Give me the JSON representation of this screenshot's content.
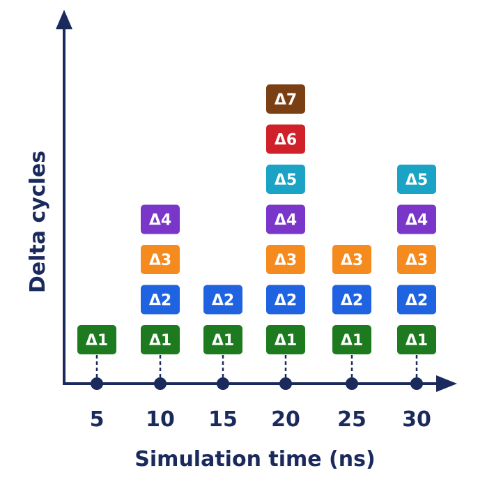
{
  "chart_data": {
    "type": "bar",
    "xlabel": "Simulation time (ns)",
    "ylabel": "Delta cycles",
    "categories": [
      "5",
      "10",
      "15",
      "20",
      "25",
      "30"
    ],
    "values": [
      1,
      4,
      2,
      7,
      3,
      5
    ],
    "delta_labels": [
      "Δ1",
      "Δ2",
      "Δ3",
      "Δ4",
      "Δ5",
      "Δ6",
      "Δ7"
    ],
    "delta_colors": [
      "#1e7a1e",
      "#1f63e0",
      "#f58b1f",
      "#7a35c9",
      "#1aa3c4",
      "#d0212a",
      "#7a3f12"
    ],
    "axis_color": "#1b2a5c"
  }
}
